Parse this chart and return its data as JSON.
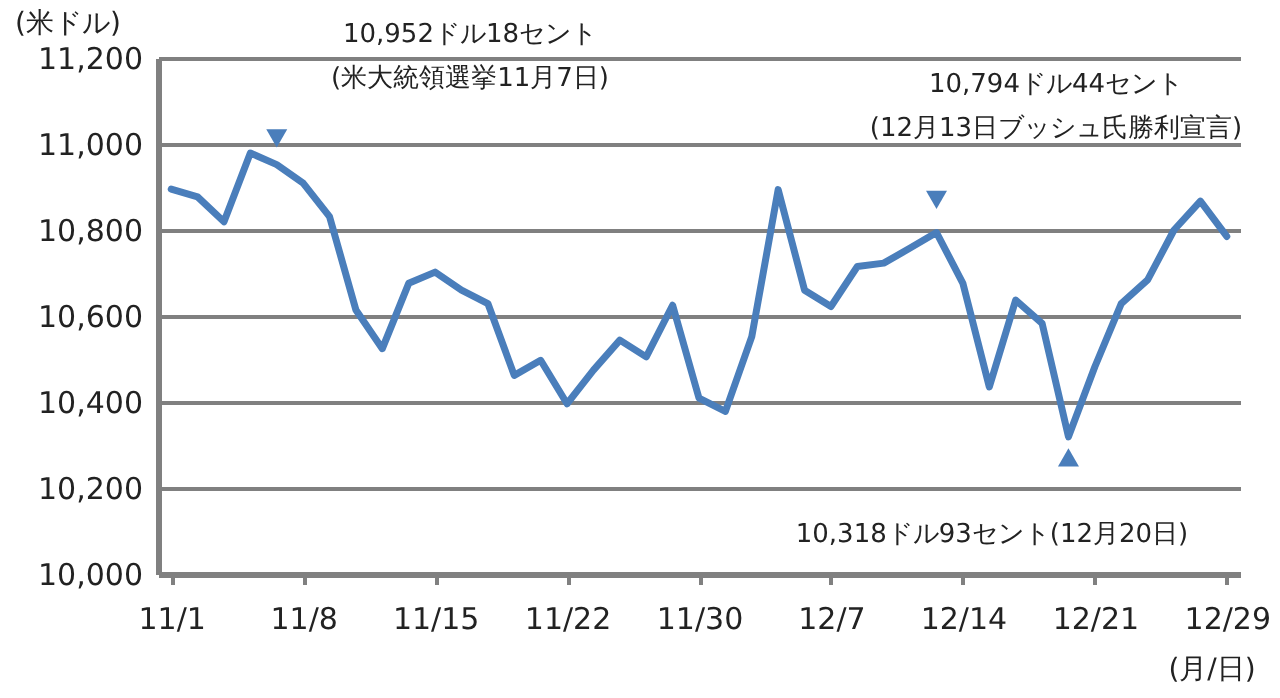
{
  "chart_data": {
    "type": "line",
    "ylabel": "(米ドル)",
    "xlabel": "(月/日)",
    "categories": [
      "11/1",
      null,
      null,
      null,
      null,
      "11/8",
      null,
      null,
      null,
      null,
      "11/15",
      null,
      null,
      null,
      null,
      "11/22",
      null,
      null,
      null,
      null,
      "11/30",
      null,
      null,
      null,
      null,
      "12/7",
      null,
      null,
      null,
      null,
      "12/14",
      null,
      null,
      null,
      null,
      "12/21",
      null,
      null,
      null,
      null,
      "12/29"
    ],
    "series": [
      {
        "color": "#4a7ebb",
        "values": [
          10895,
          10877,
          10819,
          10979,
          10952,
          10909,
          10831,
          10614,
          10524,
          10676,
          10702,
          10660,
          10629,
          10462,
          10497,
          10396,
          10474,
          10544,
          10505,
          10625,
          10409,
          10378,
          10552,
          10894,
          10660,
          10622,
          10715,
          10723,
          10758,
          10794,
          10676,
          10435,
          10637,
          10583,
          10319,
          10482,
          10629,
          10684,
          10800,
          10867,
          10785
        ]
      },
      {
        "type": "scatter",
        "marker": "triangle-down",
        "color": "#4a7ebb",
        "values": [
          null,
          null,
          null,
          null,
          11013,
          null,
          null,
          null,
          null,
          null,
          null,
          null,
          null,
          null,
          null,
          null,
          null,
          null,
          null,
          null,
          null,
          null,
          null,
          null,
          null,
          null,
          null,
          null,
          null,
          10870,
          null,
          null,
          null,
          null,
          null,
          null,
          null,
          null,
          null,
          null,
          null
        ]
      },
      {
        "type": "scatter",
        "marker": "triangle",
        "color": "#4a7ebb",
        "values": [
          null,
          null,
          null,
          null,
          null,
          null,
          null,
          null,
          null,
          null,
          null,
          null,
          null,
          null,
          null,
          null,
          null,
          null,
          null,
          null,
          null,
          null,
          null,
          null,
          null,
          null,
          null,
          null,
          null,
          null,
          null,
          null,
          null,
          null,
          10264,
          null,
          null,
          null,
          null,
          null,
          null
        ]
      }
    ],
    "ylim": [
      10000,
      11200
    ],
    "yticks": [
      {
        "value": 10000,
        "label": "10,000"
      },
      {
        "value": 10200,
        "label": "10,200"
      },
      {
        "value": 10400,
        "label": "10,400"
      },
      {
        "value": 10600,
        "label": "10,600"
      },
      {
        "value": 10800,
        "label": "10,800"
      },
      {
        "value": 11000,
        "label": "11,000"
      },
      {
        "value": 11200,
        "label": "11,200"
      }
    ],
    "grid": "y",
    "line_style": "solid",
    "annotations": [
      "10,952ドル18セント\n(米大統領選挙11月7日)",
      "10,794ドル44セント\n(12月13日ブッシュ氏勝利宣言)",
      "10,318ドル93セント(12月20日)"
    ]
  }
}
